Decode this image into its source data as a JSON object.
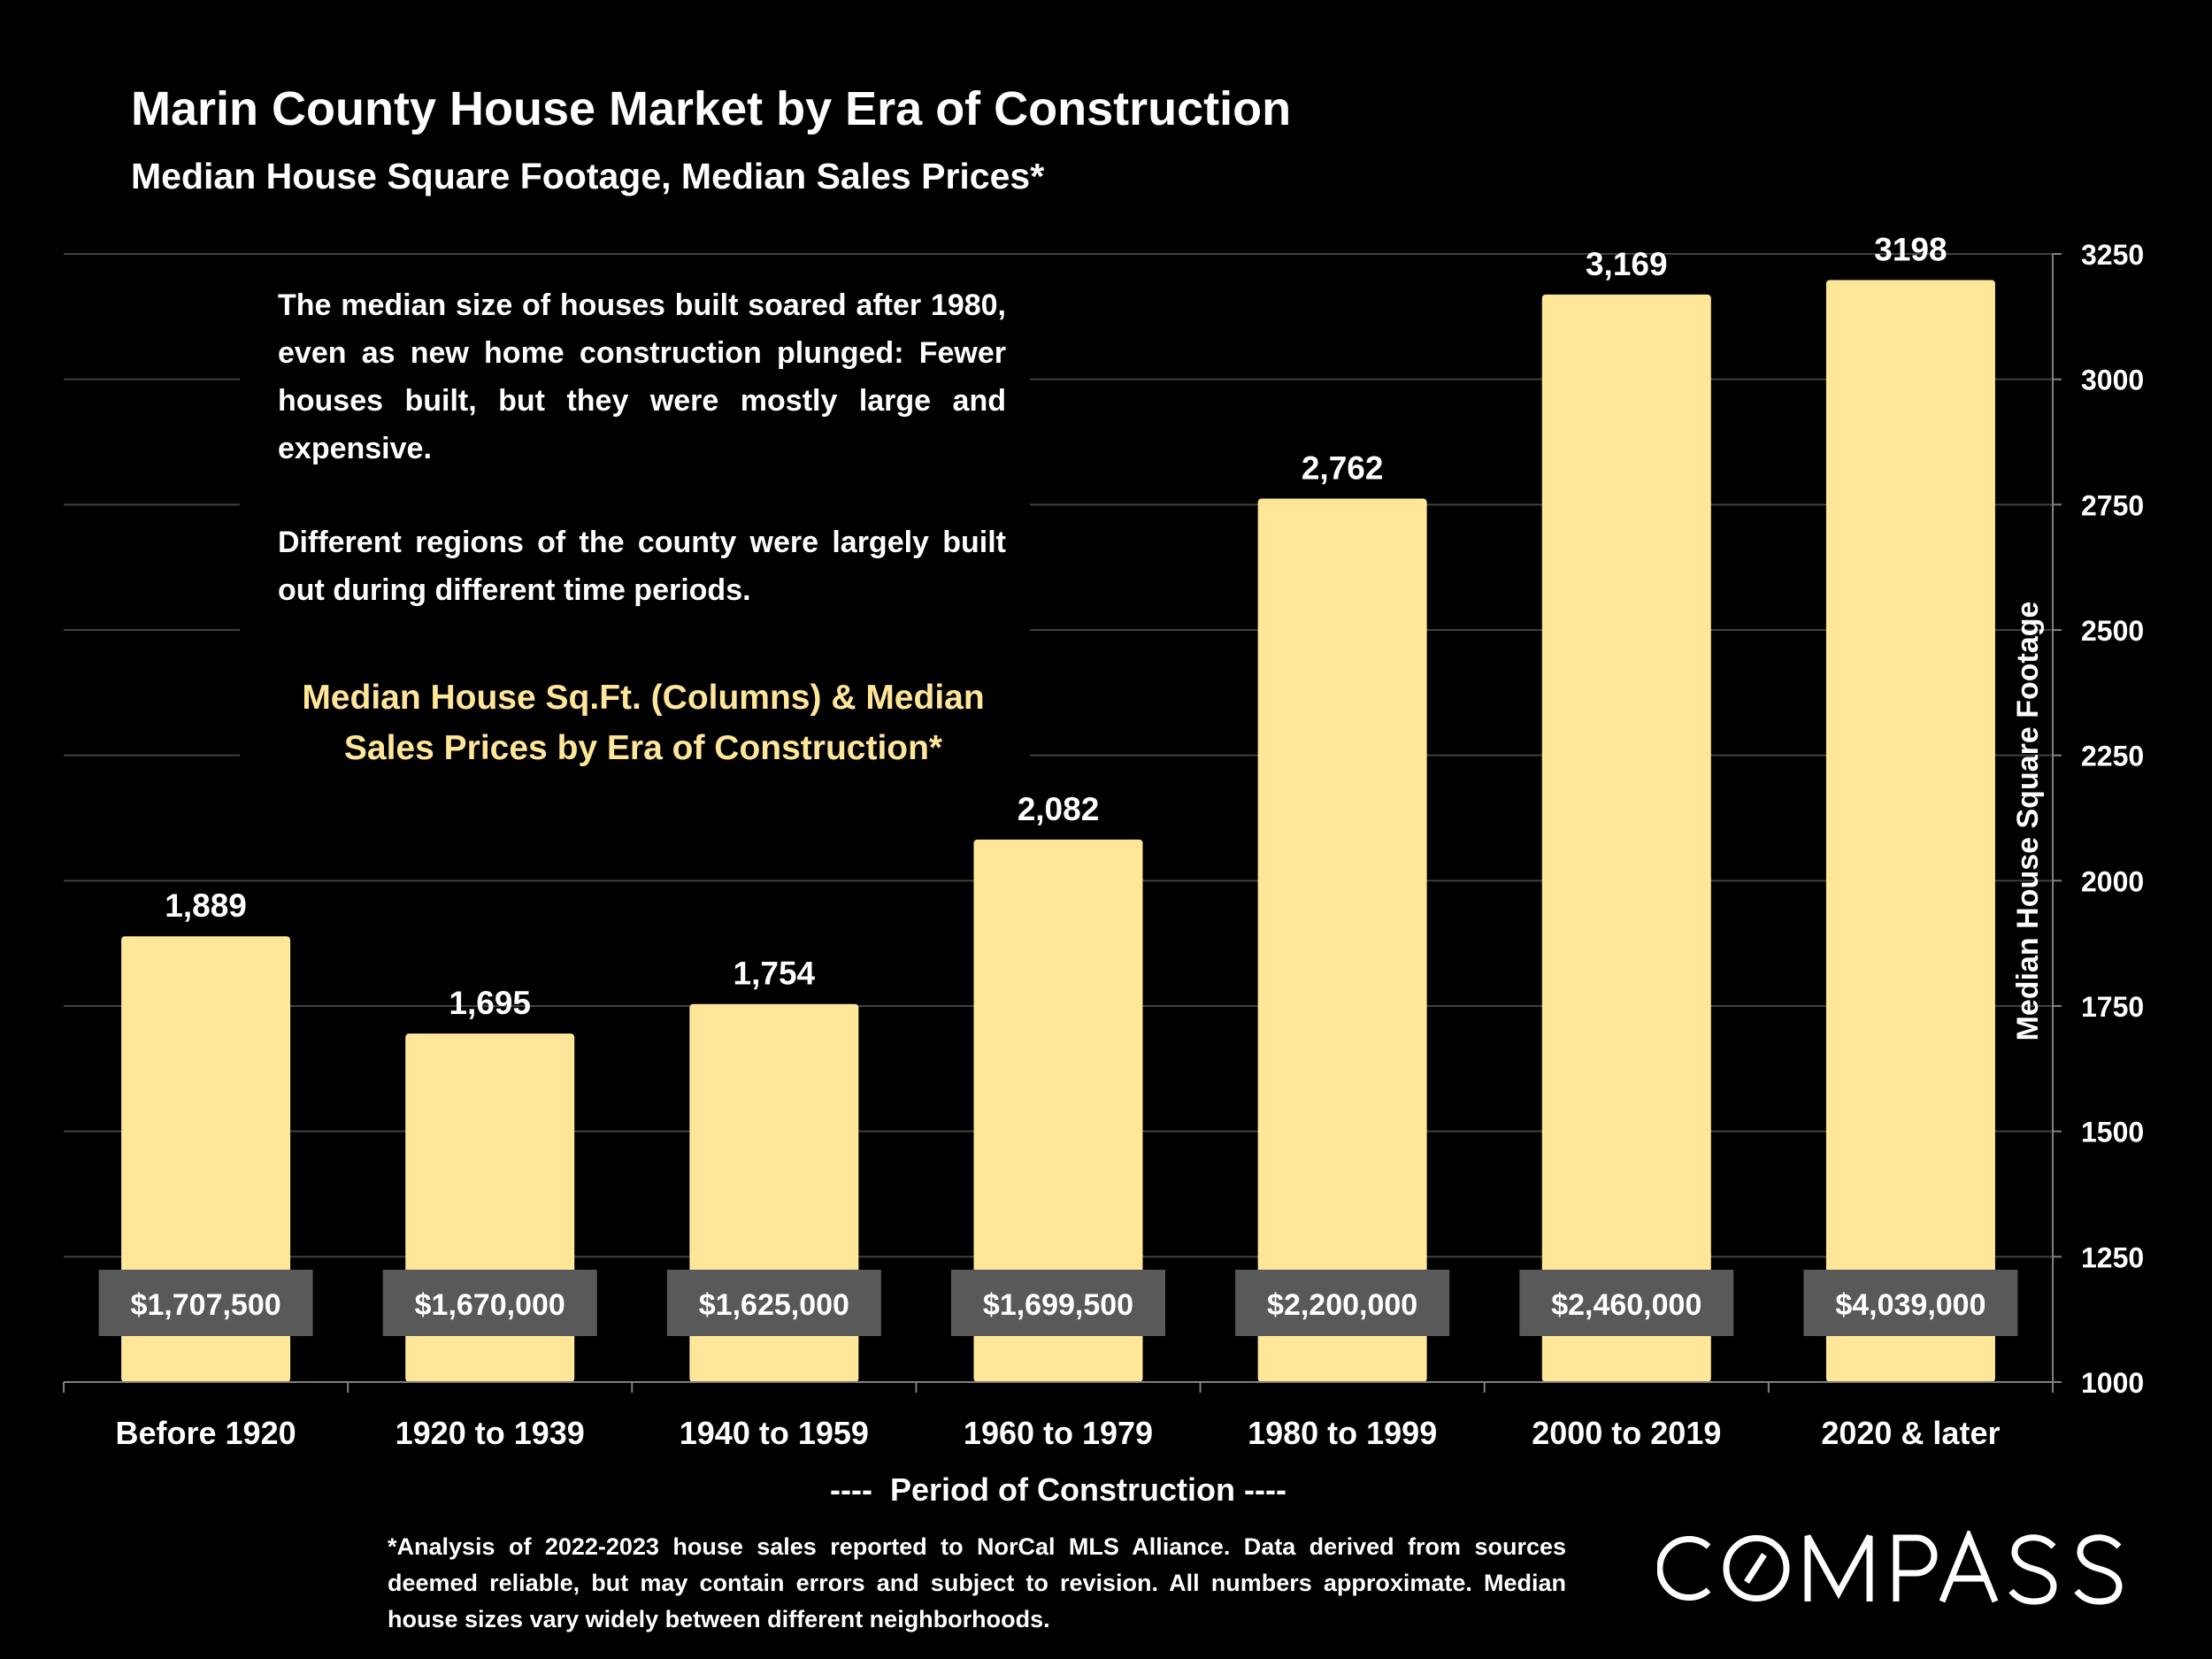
{
  "header": {
    "title": "Marin County House Market by Era of Construction",
    "subtitle": "Median House Square Footage, Median Sales Prices*"
  },
  "annotation": {
    "paragraph1": "The median size of houses built soared after 1980, even as new home construction plunged: Fewer houses built, but they were mostly large and expensive.",
    "paragraph2": "Different regions of the county were largely built out during different time periods.",
    "chart_caption": "Median House Sq.Ft. (Columns) & Median Sales Prices by Era of Construction*"
  },
  "footnote": "*Analysis of 2022-2023 house sales reported to NorCal MLS Alliance.  Data derived from sources deemed reliable, but may contain errors and subject to revision. All numbers approximate. Median house sizes vary widely between different neighborhoods.",
  "logo": {
    "text": "COMPASS"
  },
  "colors": {
    "bar": "#FFE699",
    "price_box": "#595959",
    "caption": "#FFE699",
    "grid": "#404040"
  },
  "chart_data": {
    "type": "bar",
    "title": "Marin County House Market by Era of Construction",
    "xlabel": "----  Period of Construction ----",
    "ylabel": "Median House Square Footage",
    "ylim": [
      1000,
      3250
    ],
    "yticks": [
      "1000",
      "1250",
      "1500",
      "1750",
      "2000",
      "2250",
      "2500",
      "2750",
      "3000",
      "3250"
    ],
    "y_axis_side": "right",
    "grid": true,
    "categories": [
      "Before 1920",
      "1920 to 1939",
      "1940 to 1959",
      "1960 to 1979",
      "1980 to 1999",
      "2000 to 2019",
      "2020 & later"
    ],
    "values": [
      1889,
      1695,
      1754,
      2082,
      2762,
      3169,
      3198
    ],
    "value_labels": [
      "1,889",
      "1,695",
      "1,754",
      "2,082",
      "2,762",
      "3,169",
      "3198"
    ],
    "price_labels": [
      "$1,707,500",
      "$1,670,000",
      "$1,625,000",
      "$1,699,500",
      "$2,200,000",
      "$2,460,000",
      "$4,039,000"
    ]
  }
}
